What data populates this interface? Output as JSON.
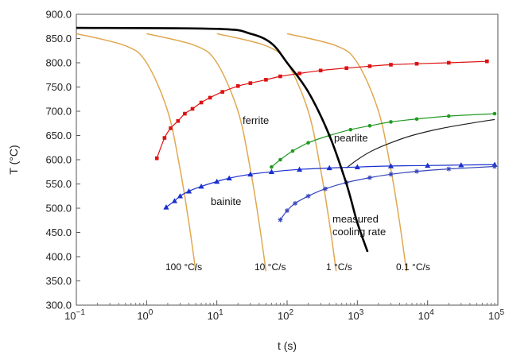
{
  "chart_data": {
    "type": "line",
    "xlabel": "t (s)",
    "ylabel": "T (°C)",
    "x_scale": "log",
    "xlim": [
      0.1,
      100000
    ],
    "ylim": [
      300,
      900
    ],
    "x_ticks": [
      {
        "value": 0.1,
        "base": "10",
        "exp": "−1"
      },
      {
        "value": 1,
        "base": "10",
        "exp": "0"
      },
      {
        "value": 10,
        "base": "10",
        "exp": "1"
      },
      {
        "value": 100,
        "base": "10",
        "exp": "2"
      },
      {
        "value": 1000,
        "base": "10",
        "exp": "3"
      },
      {
        "value": 10000,
        "base": "10",
        "exp": "4"
      },
      {
        "value": 100000,
        "base": "10",
        "exp": "5"
      }
    ],
    "y_ticks": [
      "300.0",
      "350.0",
      "400.0",
      "450.0",
      "500.0",
      "550.0",
      "600.0",
      "650.0",
      "700.0",
      "750.0",
      "800.0",
      "850.0",
      "900.0"
    ],
    "grid": false,
    "colors": {
      "cooling": "#e0a850",
      "measured": "#000000",
      "ferrite": "#dd1111",
      "pearlite": "#229922",
      "bainite": "#1a2fcc",
      "bainite_end": "#3344bb",
      "pearlite_end": "#222222"
    },
    "cooling_curves": [
      {
        "label": "100 °C/s",
        "points": [
          [
            0.1,
            860
          ],
          [
            0.5,
            835
          ],
          [
            1,
            800
          ],
          [
            2,
            700
          ],
          [
            3,
            580
          ],
          [
            4,
            470
          ],
          [
            5,
            370
          ]
        ]
      },
      {
        "label": "10 °C/s",
        "points": [
          [
            1,
            860
          ],
          [
            5,
            835
          ],
          [
            10,
            800
          ],
          [
            20,
            700
          ],
          [
            30,
            580
          ],
          [
            40,
            470
          ],
          [
            50,
            370
          ]
        ]
      },
      {
        "label": "1 °C/s",
        "points": [
          [
            10,
            860
          ],
          [
            50,
            835
          ],
          [
            100,
            800
          ],
          [
            200,
            700
          ],
          [
            300,
            580
          ],
          [
            400,
            470
          ],
          [
            500,
            370
          ]
        ]
      },
      {
        "label": "0.1 °C/s",
        "points": [
          [
            100,
            860
          ],
          [
            500,
            835
          ],
          [
            1000,
            800
          ],
          [
            2000,
            700
          ],
          [
            3000,
            580
          ],
          [
            4000,
            470
          ],
          [
            5000,
            370
          ]
        ]
      }
    ],
    "measured_cooling_rate": {
      "label_lines": [
        "measured",
        "cooling rate"
      ],
      "points": [
        [
          0.1,
          872
        ],
        [
          10,
          870
        ],
        [
          30,
          860
        ],
        [
          60,
          840
        ],
        [
          100,
          800
        ],
        [
          200,
          740
        ],
        [
          400,
          650
        ],
        [
          700,
          550
        ],
        [
          1000,
          470
        ],
        [
          1400,
          410
        ]
      ]
    },
    "ferrite": {
      "label": "ferrite",
      "points": [
        [
          1.4,
          603
        ],
        [
          1.8,
          645
        ],
        [
          2.2,
          665
        ],
        [
          2.8,
          680
        ],
        [
          3.5,
          695
        ],
        [
          4.5,
          705
        ],
        [
          6,
          718
        ],
        [
          8,
          728
        ],
        [
          12,
          740
        ],
        [
          20,
          752
        ],
        [
          30,
          758
        ],
        [
          50,
          765
        ],
        [
          80,
          772
        ],
        [
          150,
          778
        ],
        [
          300,
          784
        ],
        [
          700,
          789
        ],
        [
          1500,
          793
        ],
        [
          3000,
          796
        ],
        [
          7000,
          798
        ],
        [
          20000,
          800
        ],
        [
          70000,
          803
        ]
      ]
    },
    "pearlite_start": {
      "label": "pearlite",
      "points": [
        [
          60,
          585
        ],
        [
          80,
          600
        ],
        [
          120,
          618
        ],
        [
          200,
          635
        ],
        [
          400,
          650
        ],
        [
          800,
          662
        ],
        [
          1500,
          670
        ],
        [
          3000,
          678
        ],
        [
          7000,
          684
        ],
        [
          20000,
          690
        ],
        [
          90000,
          695
        ]
      ]
    },
    "pearlite_end": {
      "points": [
        [
          700,
          583
        ],
        [
          1000,
          600
        ],
        [
          1600,
          618
        ],
        [
          3000,
          635
        ],
        [
          6000,
          650
        ],
        [
          15000,
          664
        ],
        [
          40000,
          675
        ],
        [
          90000,
          683
        ]
      ]
    },
    "bainite_start": {
      "label": "bainite",
      "points": [
        [
          1.9,
          502
        ],
        [
          2.5,
          515
        ],
        [
          3,
          525
        ],
        [
          4,
          535
        ],
        [
          6,
          545
        ],
        [
          10,
          555
        ],
        [
          15,
          562
        ],
        [
          30,
          570
        ],
        [
          60,
          575
        ],
        [
          150,
          580
        ],
        [
          400,
          583
        ],
        [
          1000,
          585
        ],
        [
          3000,
          587
        ],
        [
          10000,
          588
        ],
        [
          30000,
          589
        ],
        [
          90000,
          590
        ]
      ]
    },
    "bainite_end": {
      "points": [
        [
          80,
          476
        ],
        [
          100,
          495
        ],
        [
          130,
          510
        ],
        [
          200,
          525
        ],
        [
          350,
          540
        ],
        [
          700,
          553
        ],
        [
          1500,
          563
        ],
        [
          3000,
          570
        ],
        [
          7000,
          576
        ],
        [
          20000,
          581
        ],
        [
          90000,
          586
        ]
      ]
    }
  }
}
